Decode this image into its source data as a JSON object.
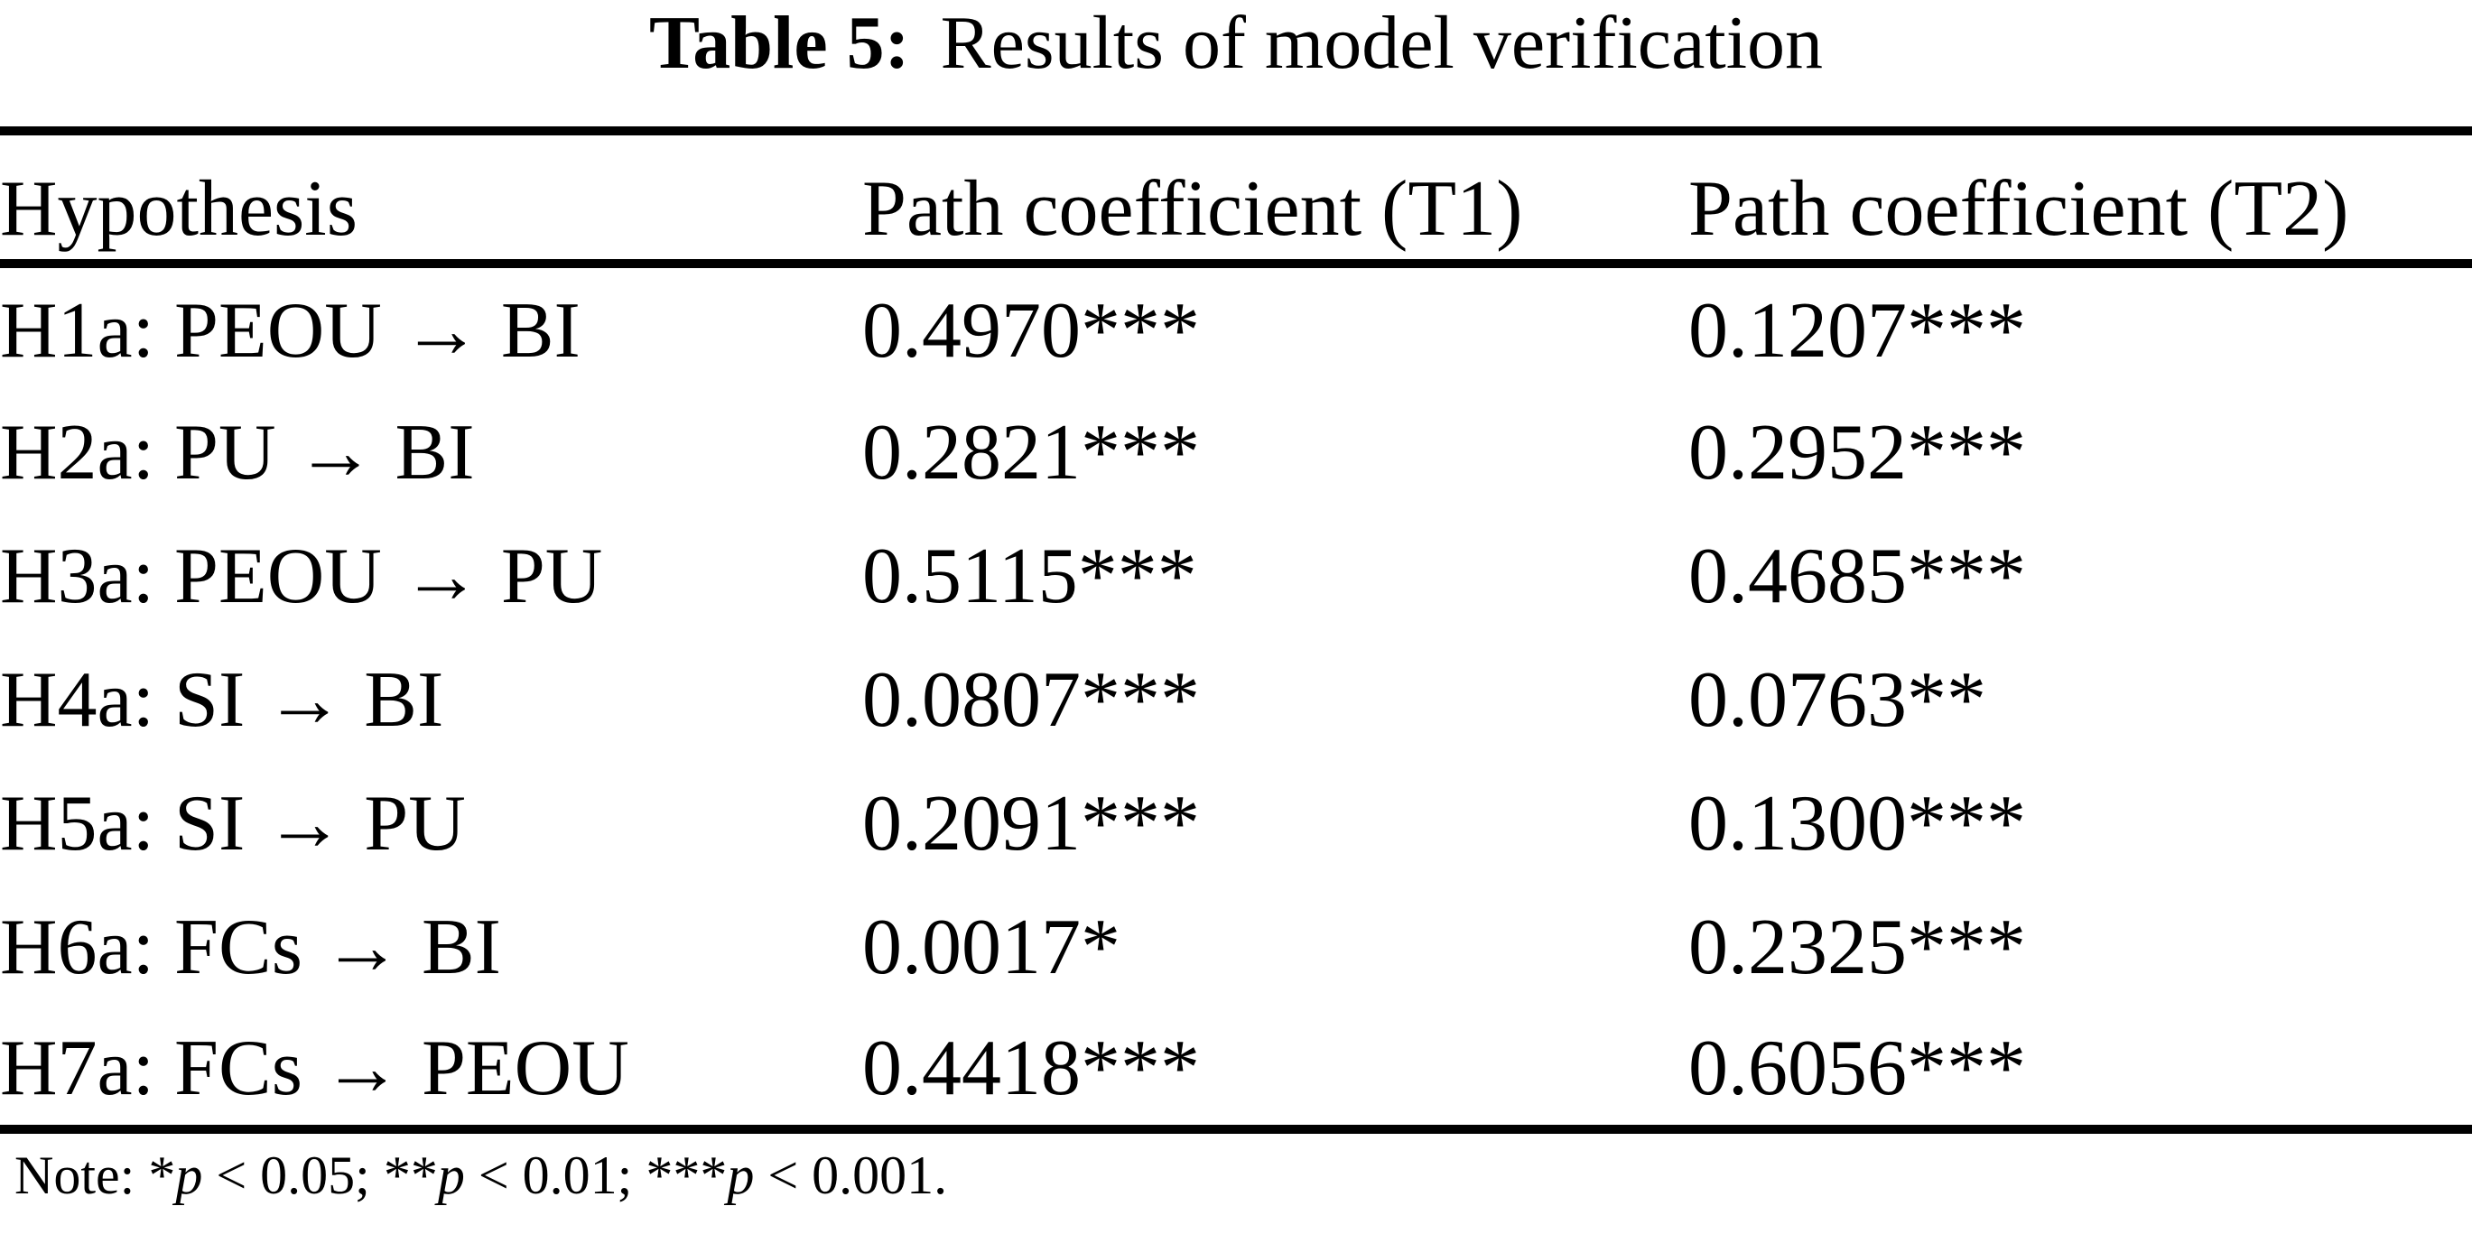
{
  "caption": {
    "label": "Table 5:",
    "title": "Results of model verification"
  },
  "table": {
    "columns": [
      "Hypothesis",
      "Path coefficient (T1)",
      "Path coefficient (T2)"
    ],
    "rows": [
      {
        "hypothesis": "H1a: PEOU → BI",
        "t1": "0.4970***",
        "t2": "0.1207***"
      },
      {
        "hypothesis": "H2a: PU → BI",
        "t1": "0.2821***",
        "t2": "0.2952***"
      },
      {
        "hypothesis": "H3a: PEOU → PU",
        "t1": "0.5115***",
        "t2": "0.4685***"
      },
      {
        "hypothesis": "H4a: SI → BI",
        "t1": "0.0807***",
        "t2": "0.0763**"
      },
      {
        "hypothesis": "H5a: SI → PU",
        "t1": "0.2091***",
        "t2": "0.1300***"
      },
      {
        "hypothesis": "H6a: FCs → BI",
        "t1": "0.0017*",
        "t2": "0.2325***"
      },
      {
        "hypothesis": "H7a: FCs → PEOU",
        "t1": "0.4418***",
        "t2": "0.6056***"
      }
    ]
  },
  "note": {
    "prefix": "Note: ",
    "entries": [
      {
        "stars": "*",
        "symbol": "p",
        "condition": " < 0.05; "
      },
      {
        "stars": "**",
        "symbol": "p",
        "condition": " < 0.01; "
      },
      {
        "stars": "***",
        "symbol": "p",
        "condition": " < 0.001."
      }
    ]
  },
  "colors": {
    "background": "#ffffff",
    "text": "#000000",
    "rule": "#000000"
  }
}
